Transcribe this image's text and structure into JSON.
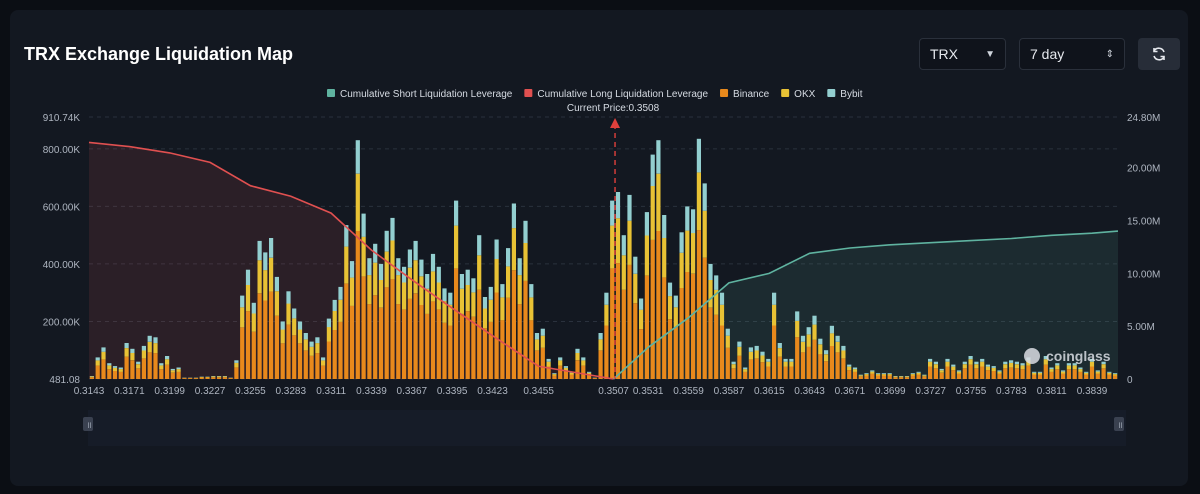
{
  "header": {
    "title": "TRX Exchange Liquidation Map",
    "coin_select": "TRX",
    "range_select": "7 day"
  },
  "icons": {
    "refresh": "refresh-icon",
    "watermark": "coinglass-logo"
  },
  "watermark": "coinglass",
  "current_price_label": "Current Price:0.3508",
  "colors": {
    "short_line": "#5fb3a0",
    "long_line": "#e05050",
    "binance": "#e8891c",
    "okx": "#e8c235",
    "bybit": "#93cfd0",
    "background": "#131821"
  },
  "chart_data": {
    "type": "bar",
    "current_price": 0.3508,
    "legend": [
      {
        "name": "Cumulative Short Liquidation Leverage",
        "color": "#5fb3a0"
      },
      {
        "name": "Cumulative Long Liquidation Leverage",
        "color": "#e05050"
      },
      {
        "name": "Binance",
        "color": "#e8891c"
      },
      {
        "name": "OKX",
        "color": "#e8c235"
      },
      {
        "name": "Bybit",
        "color": "#93cfd0"
      }
    ],
    "x_ticks": [
      "0.3143",
      "0.3171",
      "0.3199",
      "0.3227",
      "0.3255",
      "0.3283",
      "0.3311",
      "0.3339",
      "0.3367",
      "0.3395",
      "0.3423",
      "0.3455",
      "0.3507",
      "0.3531",
      "0.3559",
      "0.3587",
      "0.3615",
      "0.3643",
      "0.3671",
      "0.3699",
      "0.3727",
      "0.3755",
      "0.3783",
      "0.3811",
      "0.3839"
    ],
    "y_left_ticks": [
      "910.74K",
      "800.00K",
      "600.00K",
      "400.00K",
      "200.00K",
      "481.08"
    ],
    "y_left_max": 910740,
    "y_right_ticks": [
      "24.80M",
      "20.00M",
      "15.00M",
      "10.00M",
      "5.00M",
      "0"
    ],
    "y_right_max": 24800000,
    "x_range": [
      0.3143,
      0.3857
    ],
    "bar_totals": [
      10000,
      75000,
      110000,
      55000,
      45000,
      40000,
      125000,
      105000,
      60000,
      115000,
      150000,
      145000,
      55000,
      80000,
      35000,
      40000,
      5000,
      5000,
      5000,
      8000,
      8000,
      10000,
      10000,
      10000,
      5000,
      65000,
      290000,
      380000,
      265000,
      480000,
      440000,
      490000,
      355000,
      200000,
      305000,
      245000,
      200000,
      160000,
      130000,
      145000,
      75000,
      210000,
      275000,
      320000,
      535000,
      410000,
      830000,
      575000,
      420000,
      470000,
      400000,
      515000,
      560000,
      420000,
      390000,
      450000,
      480000,
      415000,
      365000,
      435000,
      390000,
      315000,
      300000,
      620000,
      365000,
      380000,
      350000,
      500000,
      285000,
      320000,
      485000,
      330000,
      455000,
      610000,
      420000,
      550000,
      330000,
      160000,
      175000,
      70000,
      20000,
      75000,
      45000,
      25000,
      105000,
      75000,
      25000,
      5000,
      160000,
      300000,
      620000,
      650000,
      500000,
      640000,
      425000,
      280000,
      580000,
      780000,
      830000,
      570000,
      335000,
      290000,
      510000,
      600000,
      590000,
      835000,
      680000,
      400000,
      360000,
      300000,
      175000,
      60000,
      130000,
      40000,
      110000,
      115000,
      95000,
      70000,
      300000,
      125000,
      70000,
      70000,
      235000,
      150000,
      180000,
      220000,
      140000,
      100000,
      185000,
      150000,
      115000,
      50000,
      40000,
      15000,
      20000,
      30000,
      20000,
      20000,
      20000,
      10000,
      10000,
      10000,
      20000,
      25000,
      15000,
      70000,
      60000,
      35000,
      70000,
      50000,
      30000,
      60000,
      80000,
      60000,
      70000,
      50000,
      45000,
      30000,
      60000,
      65000,
      60000,
      55000,
      75000,
      25000,
      25000,
      80000,
      40000,
      55000,
      30000,
      55000,
      55000,
      40000,
      25000,
      70000,
      30000,
      60000,
      25000,
      20000
    ],
    "bar_split": {
      "binance_share": 0.62,
      "okx_share": 0.24,
      "bybit_share": 0.14
    },
    "short_cumulative": {
      "x": [
        0.3507,
        0.3531,
        0.3559,
        0.3587,
        0.3615,
        0.3643,
        0.3671,
        0.3699,
        0.3727,
        0.3755,
        0.3783,
        0.3811,
        0.3839,
        0.3857
      ],
      "y": [
        0,
        3000000,
        5800000,
        9100000,
        10000000,
        11900000,
        12400000,
        12700000,
        12900000,
        13100000,
        13300000,
        13600000,
        13800000,
        14000000
      ]
    },
    "long_cumulative": {
      "x": [
        0.3143,
        0.3171,
        0.3199,
        0.3227,
        0.3255,
        0.3283,
        0.3311,
        0.3339,
        0.3367,
        0.3395,
        0.3423,
        0.3455,
        0.3507
      ],
      "y": [
        22400000,
        22000000,
        21400000,
        20500000,
        18300000,
        17300000,
        15700000,
        12200000,
        9400000,
        6700000,
        4100000,
        1200000,
        0
      ]
    }
  }
}
